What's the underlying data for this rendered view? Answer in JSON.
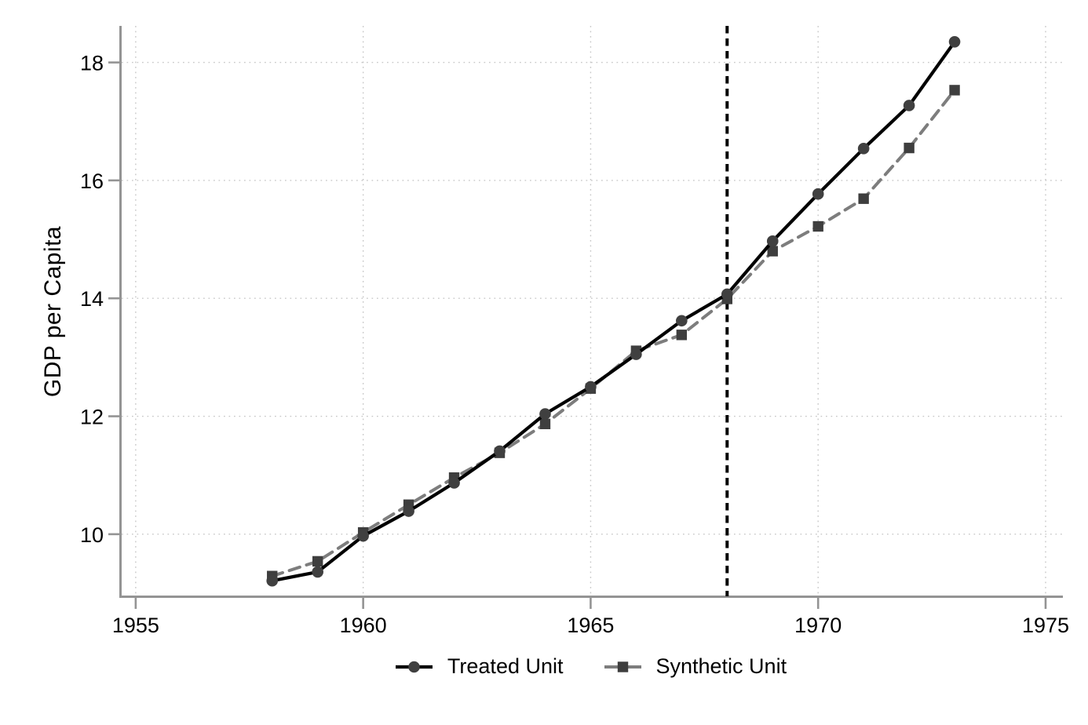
{
  "chart_data": {
    "type": "line",
    "title": "",
    "xlabel": "",
    "ylabel": "GDP per Capita",
    "x_ticks": [
      1955,
      1960,
      1965,
      1970,
      1975
    ],
    "y_ticks": [
      10,
      12,
      14,
      16,
      18
    ],
    "xlim": [
      1954.64,
      1975.38
    ],
    "ylim": [
      8.92,
      18.62
    ],
    "grid": "dotted",
    "grid_color": "#c8c8c8",
    "axis_color": "#949494",
    "treatment_line_x": 1968,
    "treatment_line_color": "#000000",
    "legend_position": "bottom-center",
    "x": [
      1958,
      1959,
      1960,
      1961,
      1962,
      1963,
      1964,
      1965,
      1966,
      1967,
      1968,
      1969,
      1970,
      1971,
      1972,
      1973
    ],
    "series": [
      {
        "name": "Synthetic Unit",
        "marker": "square",
        "line_style": "dashed",
        "line_color": "#7d7d7d",
        "marker_color": "#3e3e3e",
        "values": [
          9.29,
          9.54,
          10.03,
          10.5,
          10.96,
          11.38,
          11.87,
          12.47,
          13.11,
          13.38,
          13.99,
          14.8,
          15.22,
          15.69,
          16.55,
          17.53
        ]
      },
      {
        "name": "Treated Unit",
        "marker": "circle",
        "line_style": "solid",
        "line_color": "#000000",
        "marker_color": "#404040",
        "values": [
          9.21,
          9.36,
          9.97,
          10.39,
          10.87,
          11.41,
          12.04,
          12.5,
          13.05,
          13.62,
          14.07,
          14.97,
          15.77,
          16.54,
          17.27,
          18.35
        ]
      }
    ]
  },
  "legend": {
    "items": [
      {
        "label": "Treated Unit"
      },
      {
        "label": "Synthetic Unit"
      }
    ]
  }
}
